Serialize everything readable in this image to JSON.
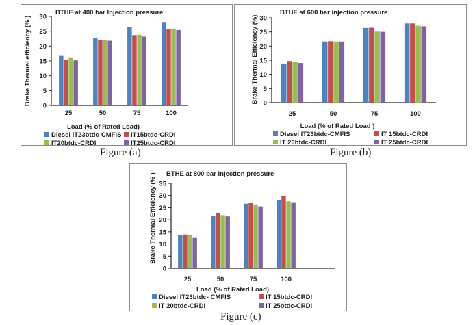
{
  "colors": {
    "series": [
      "#4f81bd",
      "#c0504d",
      "#9bbb59",
      "#8064a2"
    ],
    "axis": "#222222"
  },
  "chart_data": [
    {
      "type": "bar",
      "title": "BTHE at  400 bar Injection pressure",
      "xlabel": "Load  (% of Rated Load)",
      "ylabel": "Brake Thermal efficiency  (% )",
      "categories": [
        "25",
        "50",
        "75",
        "100"
      ],
      "yticks": [
        "0",
        "5",
        "10",
        "15",
        "20",
        "25",
        "30"
      ],
      "ylim": [
        0,
        30
      ],
      "grid": false,
      "legend_position": "bottom",
      "series": [
        {
          "name": "Diesel IT23btdc-CMFIS",
          "values": [
            16.7,
            22.8,
            26.5,
            28.1
          ]
        },
        {
          "name": "IT15btdc-CRDI",
          "values": [
            15.3,
            22.0,
            23.7,
            25.7
          ]
        },
        {
          "name": "IT20btdc-CRDI",
          "values": [
            16.0,
            22.0,
            23.8,
            25.9
          ]
        },
        {
          "name": "IT25btdc-CRDI",
          "values": [
            15.2,
            21.8,
            23.2,
            25.4
          ]
        }
      ],
      "caption": "Figure (a)"
    },
    {
      "type": "bar",
      "title": "BTHE at  600 bar injection pressure",
      "xlabel": "Load  (% of Rated  Load )",
      "ylabel": "Brake Thermal Efficiency (%)",
      "categories": [
        "25",
        "50",
        "75",
        "100"
      ],
      "yticks": [
        "0",
        "5",
        "10",
        "15",
        "20",
        "25",
        "30"
      ],
      "ylim": [
        0,
        30
      ],
      "grid": false,
      "legend_position": "bottom",
      "series": [
        {
          "name": "Diesel IT23btdc-CMFIS",
          "values": [
            13.7,
            21.6,
            26.4,
            28.0
          ]
        },
        {
          "name": "IT 15btdc-CRDI",
          "values": [
            14.7,
            21.7,
            26.5,
            28.0
          ]
        },
        {
          "name": "IT 20btdc-CRDI",
          "values": [
            14.3,
            21.6,
            25.1,
            27.2
          ]
        },
        {
          "name": "IT 25btdc-CRDI",
          "values": [
            14.0,
            21.6,
            25.0,
            27.0
          ]
        }
      ],
      "caption": "Figure (b)"
    },
    {
      "type": "bar",
      "title": "BTHE at  800 bar Injection pressure",
      "xlabel": "Load  (%  of Rated Load)",
      "ylabel": "Brake Thermal Efficiency  (% )",
      "categories": [
        "25",
        "50",
        "75",
        "100",
        ""
      ],
      "yticks": [
        "0",
        "5",
        "10",
        "15",
        "20",
        "25",
        "30",
        "35"
      ],
      "ylim": [
        0,
        35
      ],
      "grid": false,
      "legend_position": "bottom",
      "series": [
        {
          "name": "Diesel IT23btdc- CMFIS",
          "values": [
            13.6,
            21.6,
            26.6,
            28.1,
            null
          ]
        },
        {
          "name": "IT 15btdc-CRDI",
          "values": [
            13.9,
            22.8,
            27.1,
            29.8,
            null
          ]
        },
        {
          "name": "IT 20btdc-CRDI",
          "values": [
            13.7,
            21.9,
            26.3,
            27.6,
            null
          ]
        },
        {
          "name": "IT 25btdc-CRDI",
          "values": [
            12.5,
            21.4,
            25.5,
            27.2,
            null
          ]
        }
      ],
      "caption": "Figure (c)"
    }
  ]
}
